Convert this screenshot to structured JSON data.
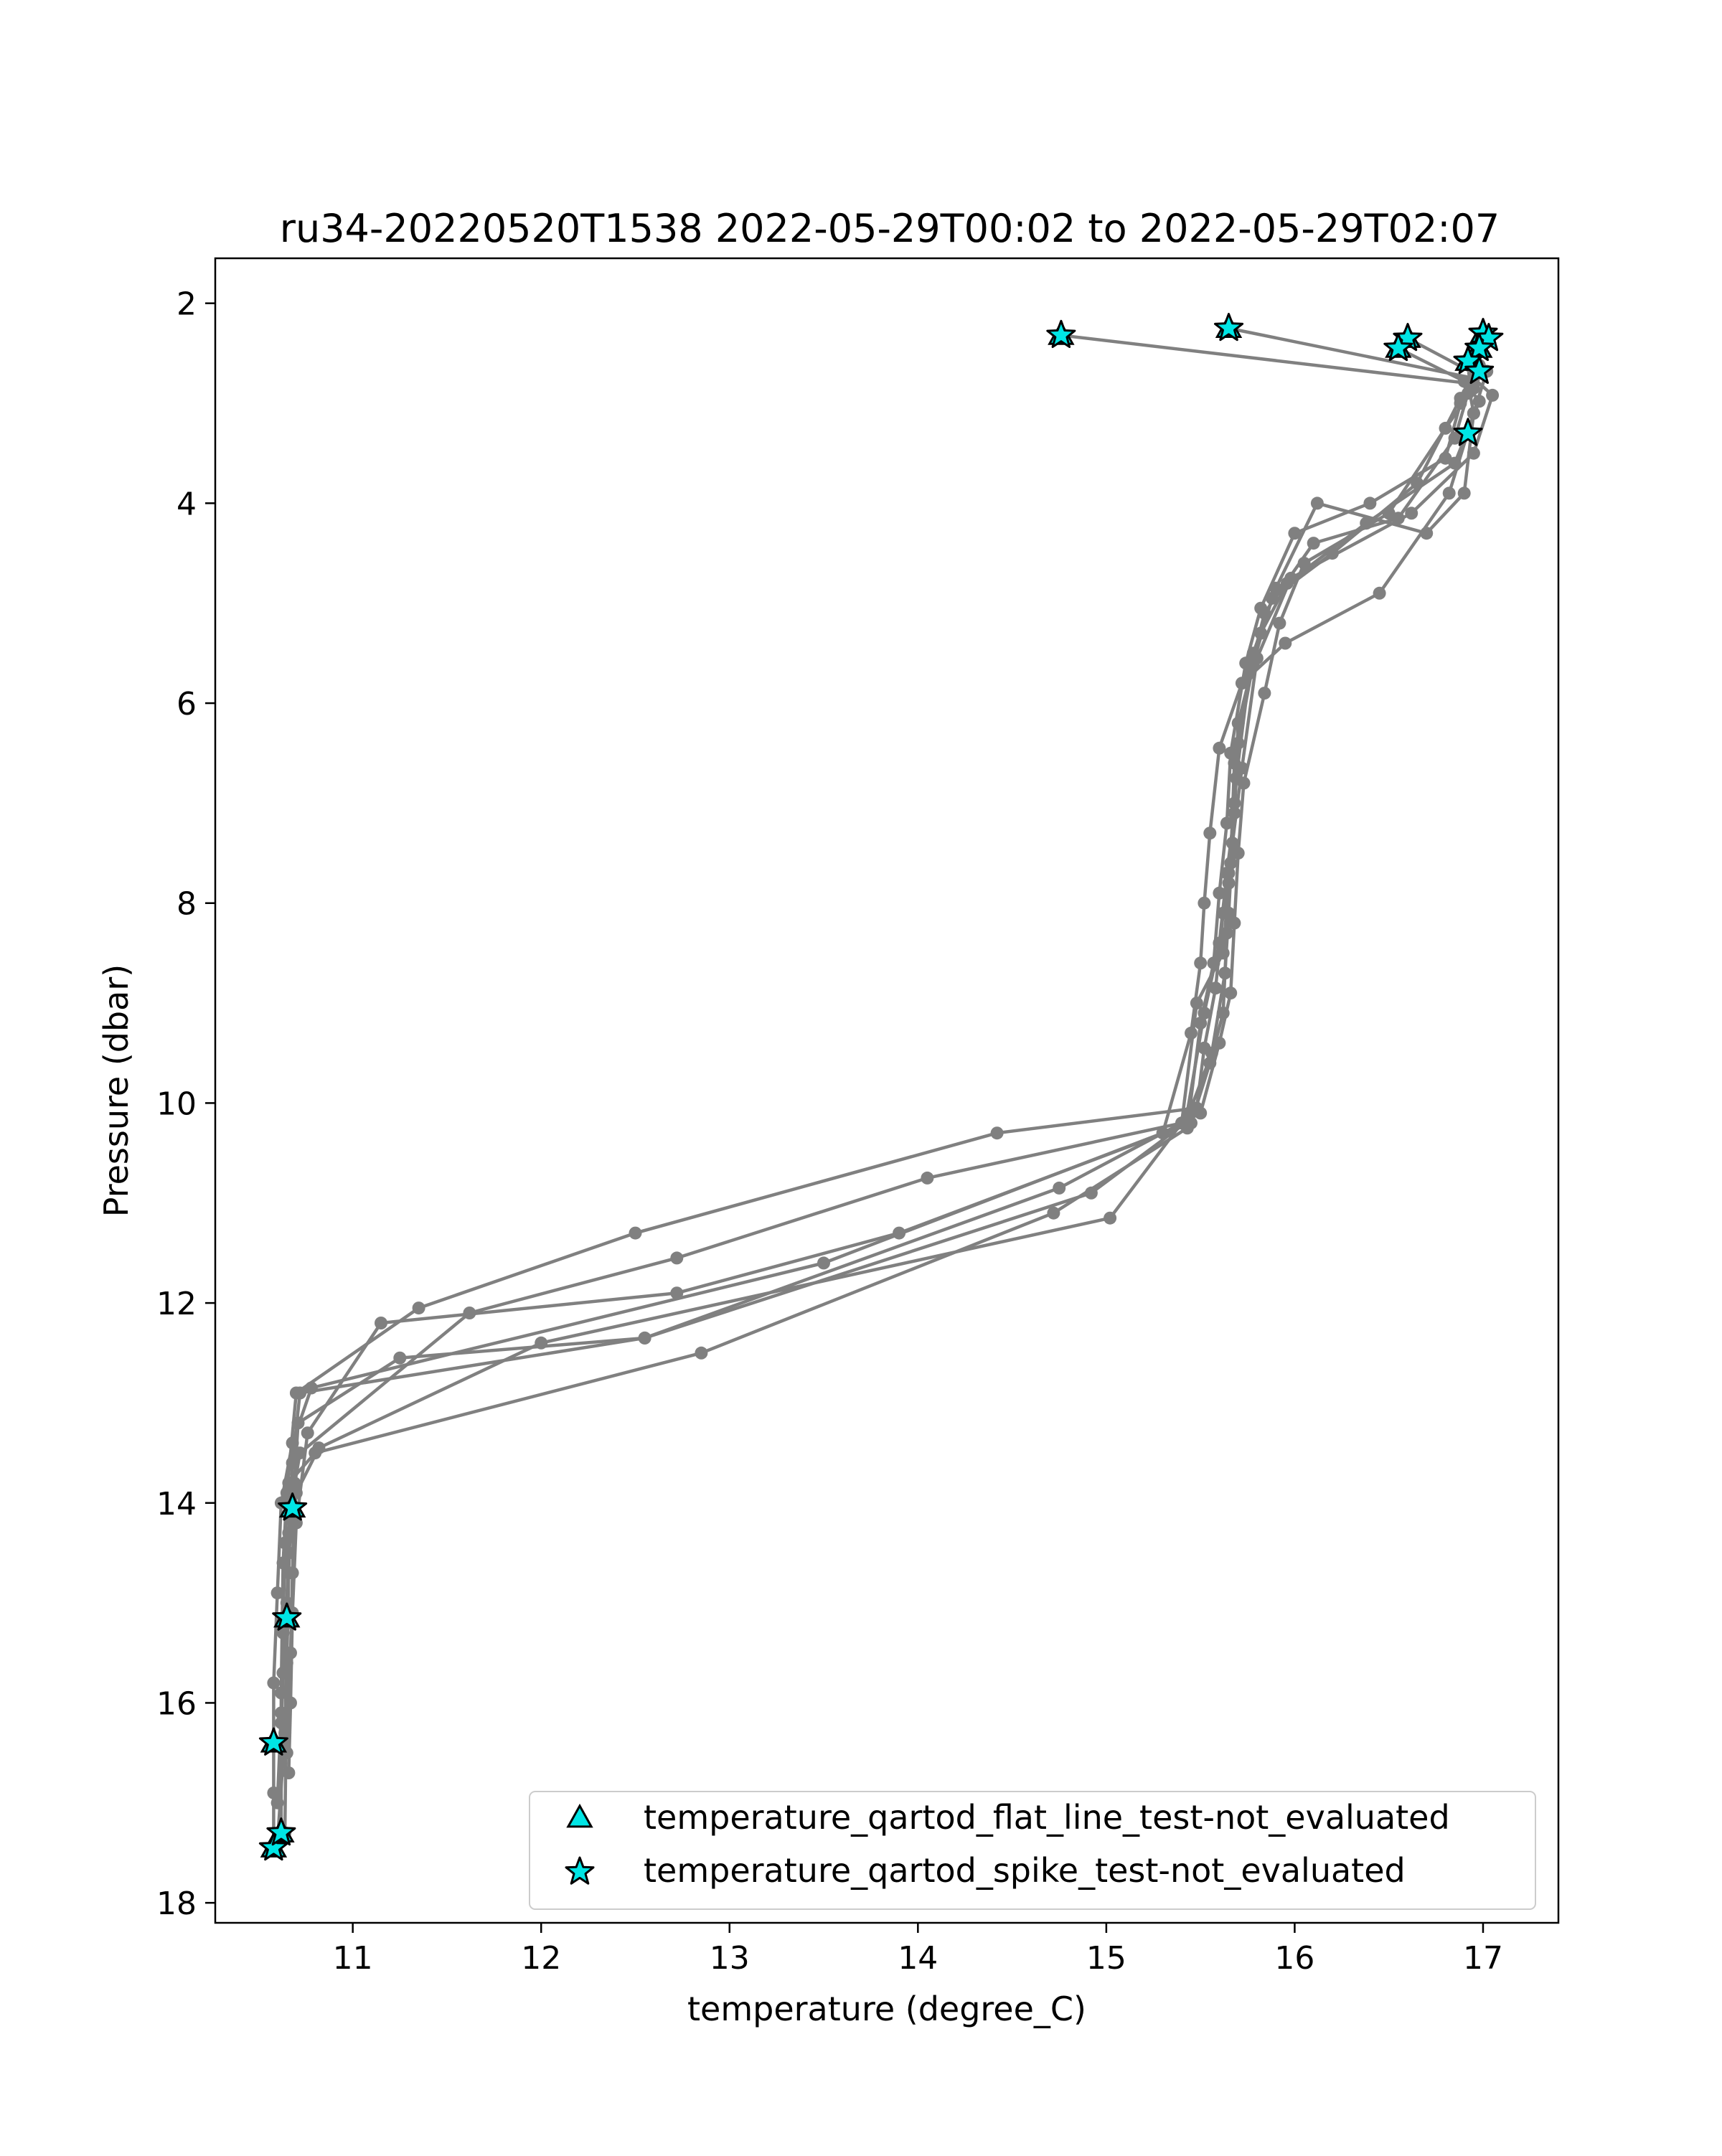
{
  "chart_data": {
    "type": "line",
    "title": "ru34-20220520T1538 2022-05-29T00:02 to 2022-05-29T02:07",
    "xlabel": "temperature (degree_C)",
    "ylabel": "Pressure (dbar)",
    "xlim": [
      10.27,
      17.4
    ],
    "ylim": [
      18.2,
      1.55
    ],
    "y_inverted": true,
    "grid": false,
    "x_ticks": [
      11,
      12,
      13,
      14,
      15,
      16,
      17
    ],
    "y_ticks": [
      2,
      4,
      6,
      8,
      10,
      12,
      14,
      16,
      18
    ],
    "line_color": "#808080",
    "marker_color": "#00e5e5",
    "legend": {
      "placement": "lower-right",
      "entries": [
        {
          "label": "temperature_qartod_flat_line_test-not_evaluated",
          "marker": "triangle"
        },
        {
          "label": "temperature_qartod_spike_test-not_evaluated",
          "marker": "star"
        }
      ]
    },
    "series": [
      {
        "x": [
          14.76,
          16.92,
          16.95,
          16.82,
          16.45,
          15.95,
          15.72,
          15.6,
          15.55,
          15.52,
          15.5,
          15.45,
          15.3,
          13.5,
          10.78,
          10.68,
          10.62,
          10.6,
          10.58,
          10.58,
          10.58
        ],
        "y": [
          2.32,
          2.8,
          3.1,
          3.9,
          4.9,
          5.4,
          5.8,
          6.45,
          7.3,
          8.0,
          8.6,
          9.3,
          10.3,
          11.6,
          12.85,
          13.4,
          14.0,
          14.9,
          15.8,
          16.9,
          17.45
        ]
      },
      {
        "x": [
          15.65,
          16.95,
          17.05,
          16.95,
          16.62,
          15.98,
          15.8,
          15.72,
          15.65,
          15.62,
          15.58,
          15.52,
          15.48,
          14.42,
          12.5,
          11.35,
          10.7,
          10.65,
          10.63,
          10.62,
          10.62
        ],
        "y": [
          2.25,
          2.75,
          2.92,
          3.5,
          4.1,
          4.75,
          5.55,
          6.65,
          7.7,
          8.1,
          8.85,
          9.45,
          10.05,
          10.3,
          11.3,
          12.05,
          12.9,
          13.9,
          14.6,
          15.9,
          17.35
        ]
      },
      {
        "x": [
          16.55,
          16.9,
          16.98,
          16.85,
          16.38,
          15.96,
          15.82,
          15.7,
          15.68,
          15.65,
          15.62,
          15.48,
          15.4,
          14.05,
          12.72,
          11.62,
          10.72,
          10.67,
          10.66,
          10.65,
          10.64
        ],
        "y": [
          2.45,
          2.78,
          2.98,
          3.6,
          4.2,
          4.8,
          5.3,
          6.2,
          7.0,
          7.8,
          8.5,
          9.0,
          10.2,
          10.75,
          11.55,
          12.1,
          13.5,
          14.05,
          14.7,
          15.6,
          17.3
        ]
      },
      {
        "x": [
          16.6,
          16.95,
          16.88,
          16.65,
          16.2,
          15.88,
          15.78,
          15.68,
          15.66,
          15.64,
          15.62,
          15.55,
          15.45,
          13.9,
          12.72,
          11.15,
          10.76,
          10.7,
          10.68,
          10.67,
          10.66
        ],
        "y": [
          2.35,
          2.7,
          2.95,
          3.8,
          4.5,
          4.95,
          5.6,
          6.6,
          7.6,
          8.3,
          9.1,
          9.6,
          10.2,
          11.3,
          11.9,
          12.2,
          13.3,
          14.2,
          15.1,
          16.0,
          16.7
        ]
      },
      {
        "x": [
          17.0,
          16.95,
          16.8,
          16.5,
          16.05,
          15.92,
          15.84,
          15.73,
          15.7,
          15.68,
          15.66,
          15.6,
          15.5,
          14.75,
          12.55,
          11.25,
          10.71,
          10.69,
          10.68,
          10.67,
          10.65
        ],
        "y": [
          2.3,
          2.85,
          3.25,
          4.1,
          4.6,
          5.2,
          5.9,
          6.8,
          7.5,
          8.2,
          8.9,
          9.4,
          10.1,
          10.85,
          12.35,
          12.55,
          13.2,
          13.8,
          14.7,
          15.5,
          16.5
        ]
      },
      {
        "x": [
          16.98,
          16.92,
          16.85,
          16.55,
          16.1,
          15.84,
          15.76,
          15.69,
          15.67,
          15.65,
          15.63,
          15.56,
          15.44,
          15.02,
          12.0,
          10.82,
          10.7,
          10.66,
          10.65,
          10.64,
          10.6
        ],
        "y": [
          2.45,
          2.9,
          3.35,
          4.15,
          4.4,
          5.1,
          5.7,
          6.75,
          7.4,
          8.1,
          8.7,
          9.5,
          10.1,
          11.15,
          12.4,
          13.45,
          13.9,
          14.5,
          15.2,
          16.3,
          17.4
        ]
      },
      {
        "x": [
          16.98,
          16.88,
          16.8,
          16.4,
          16.0,
          15.82,
          15.74,
          15.66,
          15.64,
          15.6,
          15.57,
          15.5,
          15.43,
          14.72,
          12.85,
          10.8,
          10.66,
          10.64,
          10.63,
          10.62,
          10.6
        ],
        "y": [
          2.62,
          3.0,
          3.55,
          4.0,
          4.3,
          5.05,
          5.6,
          6.5,
          7.2,
          7.9,
          8.6,
          9.2,
          10.25,
          11.1,
          12.5,
          13.5,
          13.8,
          14.4,
          15.3,
          16.1,
          17.0
        ]
      },
      {
        "x": [
          17.02,
          16.95,
          16.9,
          16.7,
          16.12,
          15.9,
          15.78,
          15.7,
          15.68,
          15.64,
          15.6,
          15.52,
          15.42,
          14.92,
          12.55,
          10.72,
          10.68,
          10.66,
          10.65,
          10.63,
          10.62
        ],
        "y": [
          2.68,
          3.1,
          3.9,
          4.3,
          4.0,
          4.85,
          5.5,
          6.4,
          7.1,
          7.7,
          8.4,
          9.1,
          10.2,
          10.9,
          12.35,
          12.9,
          13.6,
          14.3,
          15.0,
          15.7,
          16.2
        ]
      }
    ],
    "flat_line_not_evaluated": {
      "x": [
        14.76,
        15.65,
        16.6,
        16.55,
        17.0,
        16.92,
        16.98,
        10.68,
        10.65,
        10.58,
        10.58,
        10.62
      ],
      "y": [
        2.32,
        2.25,
        2.35,
        2.45,
        2.3,
        2.58,
        2.45,
        14.05,
        15.15,
        16.4,
        17.45,
        17.3
      ]
    },
    "spike_not_evaluated": {
      "x": [
        14.76,
        15.65,
        16.6,
        16.55,
        17.0,
        17.03,
        16.98,
        16.92,
        16.98,
        16.92,
        10.68,
        10.65,
        10.58,
        10.58,
        10.62
      ],
      "y": [
        2.32,
        2.25,
        2.35,
        2.45,
        2.3,
        2.35,
        2.45,
        2.58,
        2.68,
        3.3,
        14.05,
        15.15,
        16.4,
        17.45,
        17.3
      ]
    }
  }
}
